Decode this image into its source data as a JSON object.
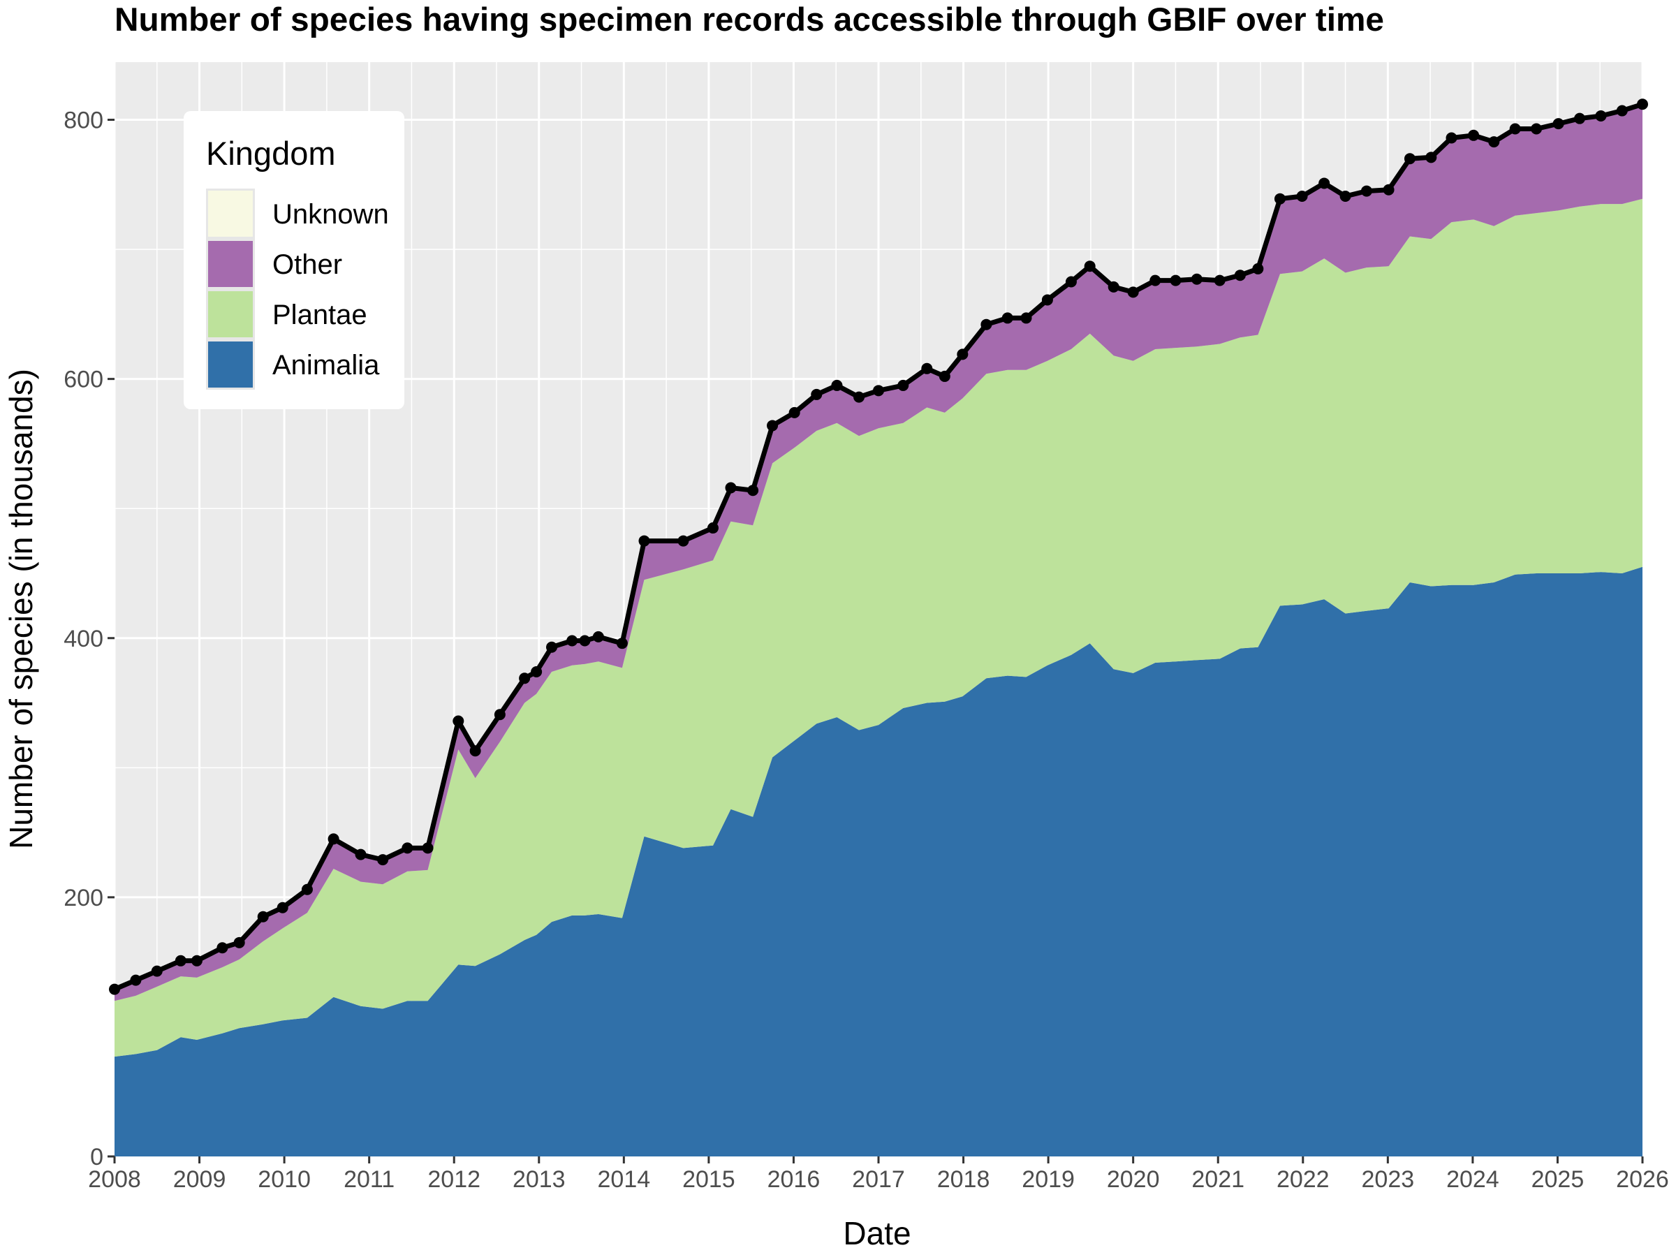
{
  "chart_data": {
    "type": "area",
    "title": "Number of species having specimen records accessible through GBIF over time",
    "xlabel": "Date",
    "ylabel": "Number of species (in thousands)",
    "xlim": [
      2008,
      2026
    ],
    "ylim": [
      0,
      840
    ],
    "x_ticks": [
      "2008",
      "2009",
      "2010",
      "2011",
      "2012",
      "2013",
      "2014",
      "2015",
      "2016",
      "2017",
      "2018",
      "2019",
      "2020",
      "2021",
      "2022",
      "2023",
      "2024",
      "2025",
      "2026"
    ],
    "y_ticks": [
      "0",
      "200",
      "400",
      "600",
      "800"
    ],
    "grid": true,
    "legend": {
      "title": "Kingdom",
      "position": "top-left",
      "entries": [
        "Unknown",
        "Other",
        "Plantae",
        "Animalia"
      ]
    },
    "colors": {
      "Animalia": "#3070a9",
      "Plantae": "#bde29b",
      "Other": "#a56bae",
      "Unknown": "#f8f9e3",
      "total_line": "#000000",
      "panel": "#ebebeb"
    },
    "x": [
      2008.0,
      2008.25,
      2008.5,
      2008.78,
      2008.97,
      2009.27,
      2009.47,
      2009.75,
      2009.98,
      2010.27,
      2010.58,
      2010.9,
      2011.16,
      2011.45,
      2011.69,
      2012.05,
      2012.25,
      2012.54,
      2012.83,
      2012.97,
      2013.15,
      2013.39,
      2013.54,
      2013.7,
      2013.98,
      2014.24,
      2014.7,
      2015.05,
      2015.26,
      2015.52,
      2015.75,
      2016.01,
      2016.27,
      2016.51,
      2016.77,
      2017.0,
      2017.29,
      2017.57,
      2017.78,
      2017.99,
      2018.27,
      2018.52,
      2018.74,
      2018.99,
      2019.27,
      2019.49,
      2019.77,
      2020.0,
      2020.26,
      2020.5,
      2020.75,
      2021.02,
      2021.26,
      2021.47,
      2021.73,
      2021.99,
      2022.25,
      2022.5,
      2022.75,
      2023.01,
      2023.26,
      2023.51,
      2023.75,
      2024.01,
      2024.25,
      2024.5,
      2024.75,
      2025.01,
      2025.26,
      2025.51,
      2025.76,
      2026.0
    ],
    "series": [
      {
        "name": "Animalia",
        "values": [
          77,
          79,
          82,
          92,
          90,
          95,
          99,
          102,
          105,
          107,
          123,
          116,
          114,
          120,
          120,
          148,
          147,
          156,
          167,
          171,
          181,
          186,
          186,
          187,
          184,
          247,
          238,
          240,
          268,
          262,
          308,
          321,
          334,
          339,
          329,
          333,
          346,
          350,
          351,
          355,
          369,
          371,
          370,
          379,
          387,
          396,
          376,
          373,
          381,
          382,
          383,
          384,
          392,
          393,
          425,
          426,
          430,
          419,
          421,
          423,
          443,
          440,
          441,
          441,
          443,
          449,
          450,
          450,
          450,
          451,
          450,
          455
        ]
      },
      {
        "name": "Plantae",
        "values": [
          43,
          45,
          49,
          47,
          48,
          51,
          53,
          64,
          71,
          81,
          99,
          96,
          96,
          100,
          101,
          166,
          145,
          164,
          183,
          186,
          193,
          193,
          194,
          195,
          193,
          198,
          215,
          220,
          222,
          225,
          227,
          226,
          226,
          227,
          227,
          229,
          220,
          228,
          223,
          230,
          235,
          236,
          237,
          235,
          236,
          239,
          242,
          241,
          242,
          242,
          242,
          243,
          240,
          241,
          256,
          257,
          263,
          263,
          265,
          264,
          267,
          268,
          280,
          282,
          275,
          277,
          278,
          280,
          283,
          284,
          285,
          284
        ]
      },
      {
        "name": "Other",
        "values": [
          9,
          12,
          12,
          12,
          13,
          15,
          13,
          19,
          16,
          18,
          23,
          21,
          19,
          18,
          17,
          22,
          21,
          21,
          19,
          17,
          19,
          19,
          18,
          19,
          19,
          30,
          22,
          25,
          26,
          27,
          29,
          27,
          28,
          29,
          30,
          29,
          29,
          30,
          28,
          34,
          38,
          40,
          40,
          47,
          52,
          52,
          53,
          53,
          53,
          52,
          52,
          49,
          48,
          51,
          58,
          58,
          58,
          59,
          59,
          59,
          60,
          63,
          65,
          65,
          65,
          67,
          65,
          67,
          68,
          68,
          72,
          73
        ]
      },
      {
        "name": "Unknown",
        "values": [
          0,
          0,
          0,
          0,
          0,
          0,
          0,
          0,
          0,
          0,
          0,
          0,
          0,
          0,
          0,
          0,
          0,
          0,
          0,
          0,
          0,
          0,
          0,
          0,
          0,
          0,
          0,
          0,
          0,
          0,
          0,
          0,
          0,
          0,
          0,
          0,
          0,
          0,
          0,
          0,
          0,
          0,
          0,
          0,
          0,
          0,
          0,
          0,
          0,
          0,
          0,
          0,
          0,
          0,
          0,
          0,
          0,
          0,
          0,
          0,
          0,
          0,
          0,
          0,
          0,
          0,
          0,
          0,
          0,
          0,
          0,
          0
        ]
      }
    ]
  }
}
